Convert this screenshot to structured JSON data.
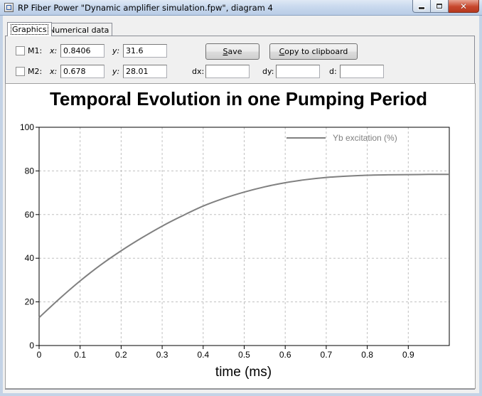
{
  "window": {
    "title": "RP Fiber Power \"Dynamic amplifier simulation.fpw\", diagram 4",
    "close_glyph": "✕"
  },
  "tabs": [
    {
      "label": "Graphics",
      "active": true
    },
    {
      "label": "Numerical data",
      "active": false
    }
  ],
  "markers": {
    "m1": {
      "label": "M1:",
      "x_label": "x:",
      "x_value": "0.8406",
      "y_label": "y:",
      "y_value": "31.6"
    },
    "m2": {
      "label": "M2:",
      "x_label": "x:",
      "x_value": "0.678",
      "y_label": "y:",
      "y_value": "28.01"
    }
  },
  "buttons": {
    "save": {
      "prefix": "",
      "accel": "S",
      "rest": "ave"
    },
    "copy": {
      "prefix": "",
      "accel": "C",
      "rest": "opy to clipboard"
    }
  },
  "diff_fields": {
    "dx_label": "dx:",
    "dx_value": "",
    "dy_label": "dy:",
    "dy_value": "",
    "d_label": "d:",
    "d_value": ""
  },
  "chart_data": {
    "type": "line",
    "title": "Temporal Evolution in one Pumping Period",
    "xlabel": "time (ms)",
    "ylabel": "",
    "xlim": [
      0,
      1
    ],
    "ylim": [
      0,
      100
    ],
    "xticks": [
      0,
      0.1,
      0.2,
      0.3,
      0.4,
      0.5,
      0.6,
      0.7,
      0.8,
      0.9
    ],
    "xtick_labels": [
      "0",
      "0.1",
      "0.2",
      "0.3",
      "0.4",
      "0.5",
      "0.6",
      "0.7",
      "0.8",
      "0.9"
    ],
    "yticks": [
      0,
      20,
      40,
      60,
      80,
      100
    ],
    "ytick_labels": [
      "0",
      "20",
      "40",
      "60",
      "80",
      "100"
    ],
    "grid": true,
    "legend_position": "top-right",
    "series": [
      {
        "name": "Yb excitation (%)",
        "color": "#808080",
        "x": [
          0,
          0.05,
          0.1,
          0.15,
          0.2,
          0.25,
          0.3,
          0.35,
          0.4,
          0.45,
          0.5,
          0.55,
          0.6,
          0.65,
          0.7,
          0.75,
          0.8,
          0.85,
          0.9,
          0.95,
          1.0
        ],
        "y": [
          12.8,
          21.5,
          29.6,
          36.9,
          43.4,
          49.3,
          54.7,
          59.5,
          63.9,
          67.4,
          70.3,
          72.7,
          74.6,
          76.0,
          77.0,
          77.6,
          78.0,
          78.2,
          78.3,
          78.4,
          78.4
        ]
      }
    ]
  }
}
